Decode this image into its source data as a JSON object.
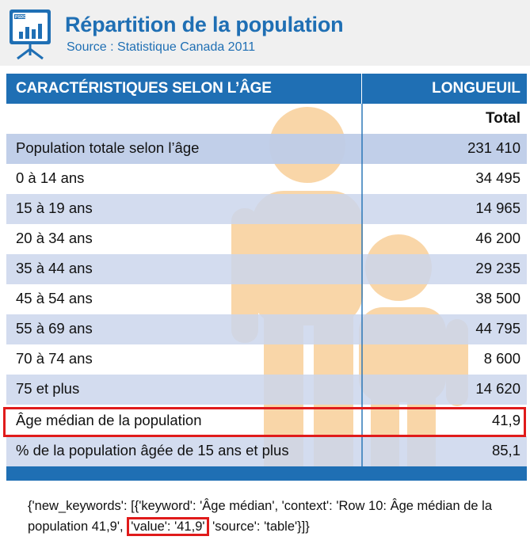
{
  "header": {
    "logo_text": "PSDD",
    "title": "Répartition de la population",
    "subtitle": "Source : Statistique Canada 2011"
  },
  "table": {
    "col_left": "CARACTÉRISTIQUES SELON L’ÂGE",
    "col_right": "LONGUEUIL",
    "subheader": "Total",
    "rows": [
      {
        "label": "Population totale selon l’âge",
        "value": "231 410"
      },
      {
        "label": "0 à 14 ans",
        "value": "34 495"
      },
      {
        "label": "15 à 19 ans",
        "value": "14 965"
      },
      {
        "label": "20 à 34 ans",
        "value": "46 200"
      },
      {
        "label": "35 à 44 ans",
        "value": "29 235"
      },
      {
        "label": "45 à 54 ans",
        "value": "38 500"
      },
      {
        "label": "55 à 69 ans",
        "value": "44 795"
      },
      {
        "label": "70 à 74 ans",
        "value": "8 600"
      },
      {
        "label": "75 et plus",
        "value": "14 620"
      },
      {
        "label": "Âge médian de la population",
        "value": "41,9"
      },
      {
        "label": "% de la population âgée de 15 ans et plus",
        "value": "85,1"
      }
    ]
  },
  "note": {
    "part1": "{'new_keywords': [{'keyword': 'Âge médian', 'context': 'Row 10: Âge médian de la population 41,9',",
    "part2": "'value': '41,9'",
    "part3": " 'source': 'table'}]}"
  },
  "colors": {
    "brand_blue": "#1f6fb4",
    "row_shade": "#cbd6ec",
    "figure_orange": "#f7c98c",
    "highlight_red": "#e01b1b"
  }
}
